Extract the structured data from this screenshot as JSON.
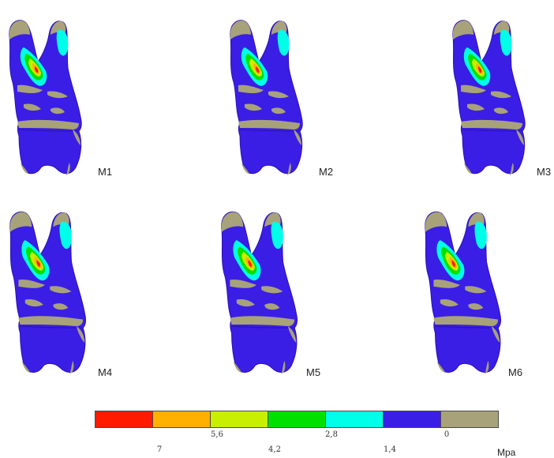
{
  "models": [
    "M1",
    "M2",
    "M3",
    "M4",
    "M5",
    "M6"
  ],
  "legend": {
    "colors": [
      "#ff1a00",
      "#ffb000",
      "#c8ee00",
      "#00e000",
      "#00ffe8",
      "#3a1ee6",
      "#a8a27a"
    ],
    "ticks_low": [
      "5,6",
      "2,8",
      "0"
    ],
    "ticks_high": [
      "7",
      "4,2",
      "1,4"
    ],
    "unit": "Mpa"
  }
}
